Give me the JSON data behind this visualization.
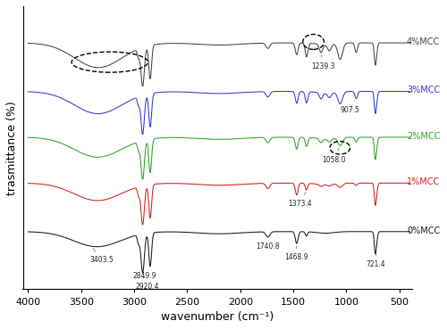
{
  "xlabel": "wavenumber (cm⁻¹)",
  "ylabel": "trasmittance (%)",
  "colors": {
    "0%MCC": "#1a1a1a",
    "1%MCC": "#cc2020",
    "2%MCC": "#2ca02c",
    "3%MCC": "#3535cc",
    "4%MCC": "#444444"
  },
  "offsets": [
    0.0,
    0.9,
    1.75,
    2.6,
    3.5
  ],
  "label_fontsize": 7,
  "axis_fontsize": 9,
  "tick_fontsize": 8
}
